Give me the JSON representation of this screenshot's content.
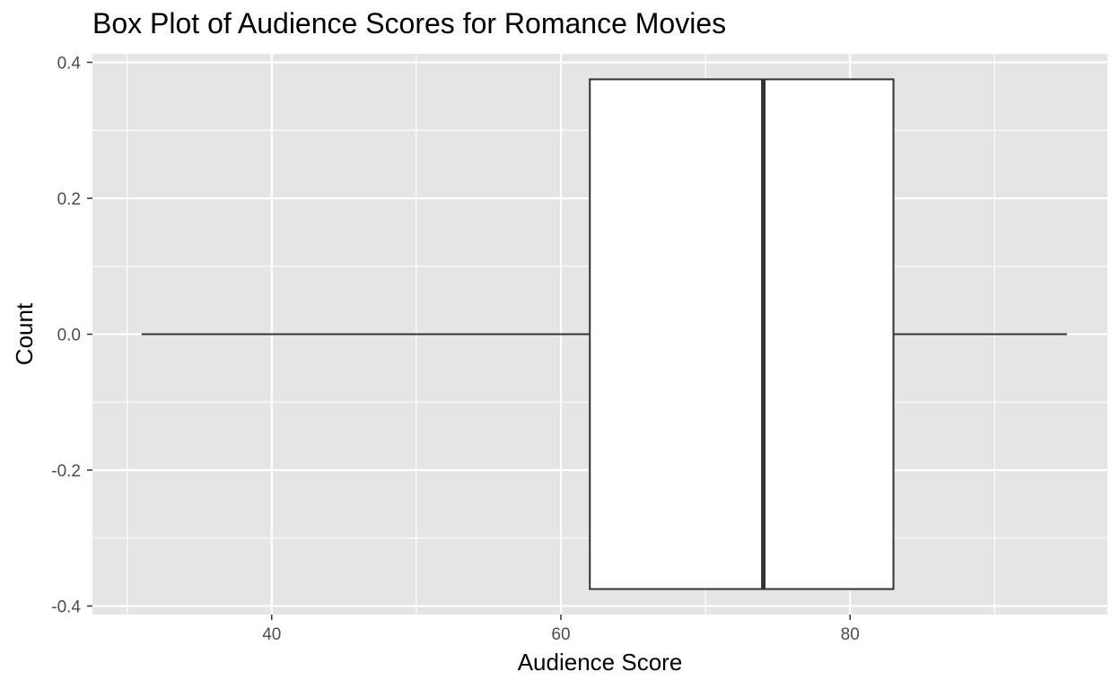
{
  "chart_data": {
    "type": "box",
    "title": "Box Plot of Audience Scores for Romance Movies",
    "xlabel": "Audience Score",
    "ylabel": "Count",
    "xlim": [
      27.6,
      97.8
    ],
    "ylim": [
      -0.4125,
      0.4125
    ],
    "x_ticks": [
      40,
      60,
      80
    ],
    "x_tick_labels": [
      "40",
      "60",
      "80"
    ],
    "y_ticks": [
      -0.4,
      -0.2,
      0.0,
      0.2,
      0.4
    ],
    "y_tick_labels": [
      "-0.4",
      "-0.2",
      "0.0",
      "0.2",
      "0.4"
    ],
    "grid": true,
    "boxes": [
      {
        "min": 31,
        "q1": 62,
        "median": 74,
        "q3": 83,
        "max": 95,
        "y": 0.0,
        "half_width": 0.375
      }
    ],
    "colors": {
      "panel_background": "#e5e5e5",
      "grid": "#ffffff",
      "box_fill": "#ffffff",
      "box_stroke": "#333333",
      "tick_text": "#4d4d4d"
    }
  }
}
